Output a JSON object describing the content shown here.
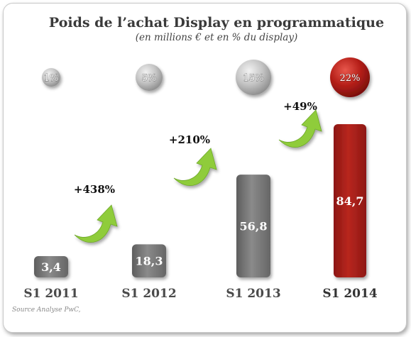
{
  "chart_data": {
    "type": "bar",
    "title": "Poids de l’achat Display en programmatique",
    "subtitle": "(en millions € et en % du display)",
    "categories": [
      "S1 2011",
      "S1 2012",
      "S1 2013",
      "S1 2014"
    ],
    "values": [
      3.4,
      18.3,
      56.8,
      84.7
    ],
    "value_labels": [
      "3,4",
      "18,3",
      "56,8",
      "84,7"
    ],
    "share_labels": [
      "1%",
      "5%",
      "15%",
      "22%"
    ],
    "growth_labels": [
      "+438%",
      "+210%",
      "+49%"
    ],
    "source": "Source Analyse PwC,",
    "grid": false,
    "legend": "none",
    "colors": {
      "bar": "#7b7b7b",
      "bar_highlight": "#a8201a",
      "arrow": "#8fcc3a",
      "bubble": "#bdbdbd",
      "bubble_highlight": "#b01d1a"
    }
  }
}
